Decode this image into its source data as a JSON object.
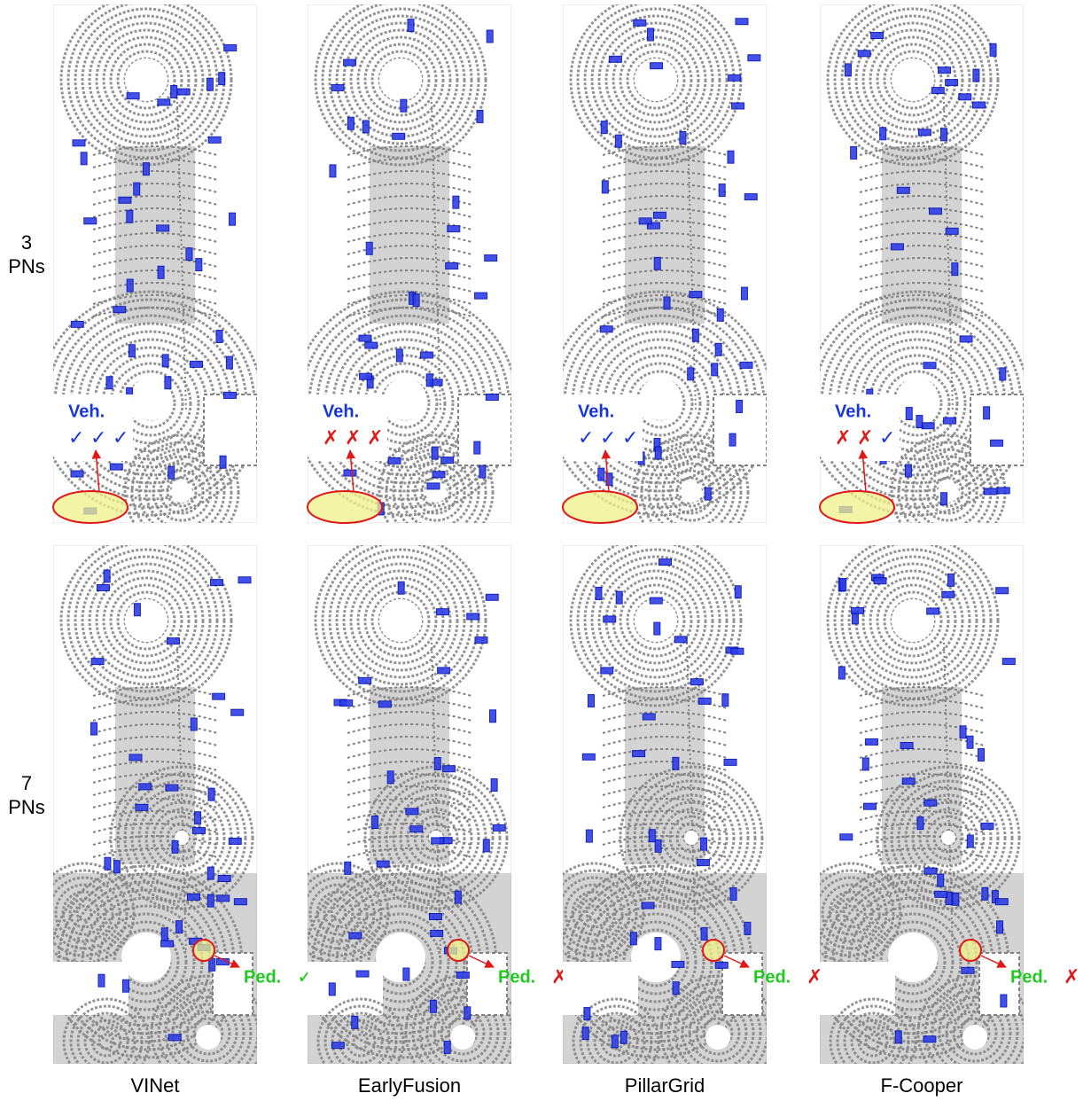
{
  "rows": [
    {
      "label": [
        "3",
        "PNs"
      ],
      "panels": [
        {
          "annotation": "Veh.",
          "marks": [
            {
              "text": "✓",
              "color": "#1836e0"
            },
            {
              "text": "✓",
              "color": "#1836e0"
            },
            {
              "text": "✓",
              "color": "#1836e0"
            }
          ]
        },
        {
          "annotation": "Veh.",
          "marks": [
            {
              "text": "✗",
              "color": "#e01818"
            },
            {
              "text": "✗",
              "color": "#e01818"
            },
            {
              "text": "✗",
              "color": "#e01818"
            }
          ]
        },
        {
          "annotation": "Veh.",
          "marks": [
            {
              "text": "✓",
              "color": "#1836e0"
            },
            {
              "text": "✓",
              "color": "#1836e0"
            },
            {
              "text": "✓",
              "color": "#1836e0"
            }
          ]
        },
        {
          "annotation": "Veh.",
          "marks": [
            {
              "text": "✗",
              "color": "#e01818"
            },
            {
              "text": "✗",
              "color": "#e01818"
            },
            {
              "text": "✓",
              "color": "#1836e0"
            }
          ]
        }
      ]
    },
    {
      "label": [
        "7",
        "PNs"
      ],
      "panels": [
        {
          "annotation": "Ped.",
          "marks": [
            {
              "text": "✓",
              "color": "#22c822"
            }
          ]
        },
        {
          "annotation": "Ped.",
          "marks": [
            {
              "text": "✗",
              "color": "#e01818"
            }
          ]
        },
        {
          "annotation": "Ped.",
          "marks": [
            {
              "text": "✗",
              "color": "#e01818"
            }
          ]
        },
        {
          "annotation": "Ped.",
          "marks": [
            {
              "text": "✗",
              "color": "#e01818"
            }
          ]
        }
      ]
    }
  ],
  "columns": [
    "VINet",
    "EarlyFusion",
    "PillarGrid",
    "F-Cooper"
  ]
}
